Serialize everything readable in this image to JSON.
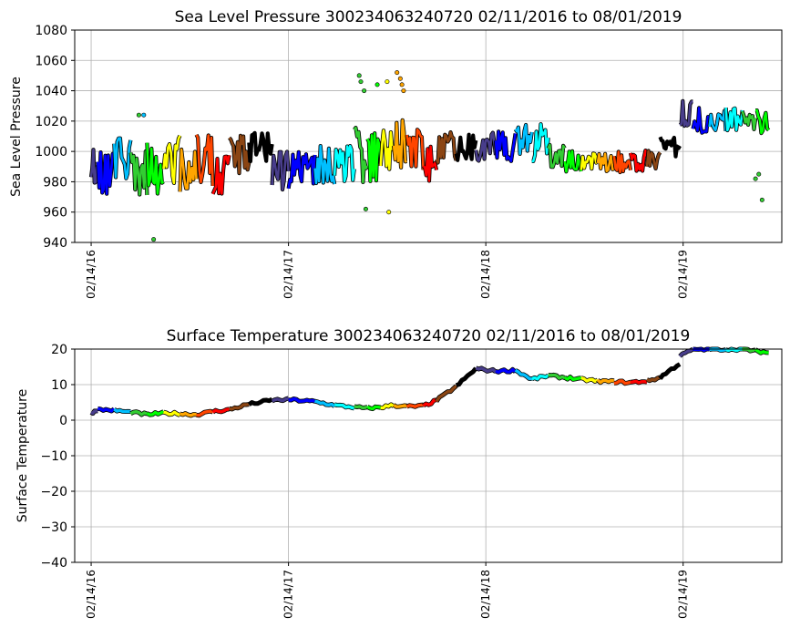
{
  "chart_data": [
    {
      "type": "scatter",
      "title": "Sea Level Pressure 300234063240720  02/11/2016 to 08/01/2019",
      "xlabel": "",
      "ylabel": "Sea Level Pressure",
      "ylim": [
        940,
        1080
      ],
      "yticks": [
        "940",
        "960",
        "980",
        "1000",
        "1020",
        "1040",
        "1060",
        "1080"
      ],
      "xlim_months": [
        -1.0,
        42.0
      ],
      "xticks": [
        {
          "label": "02/14/16",
          "month": 0
        },
        {
          "label": "02/14/17",
          "month": 12
        },
        {
          "label": "02/14/18",
          "month": 24
        },
        {
          "label": "02/14/19",
          "month": 36
        }
      ],
      "grid": true,
      "series": [
        {
          "month_start": 0,
          "month_end": 0.4,
          "color": "#483D8B",
          "center": 990,
          "amp": 14
        },
        {
          "month_start": 0.4,
          "month_end": 1.4,
          "color": "#0000FF",
          "center": 985,
          "amp": 15
        },
        {
          "month_start": 1.4,
          "month_end": 2.4,
          "color": "#00BFFF",
          "center": 995,
          "amp": 16
        },
        {
          "month_start": 2.4,
          "month_end": 3.4,
          "color": "#32CD32",
          "center": 985,
          "amp": 20
        },
        {
          "month_start": 3.4,
          "month_end": 4.4,
          "color": "#00FF00",
          "center": 990,
          "amp": 20
        },
        {
          "month_start": 4.4,
          "month_end": 5.4,
          "color": "#FFFF00",
          "center": 995,
          "amp": 18
        },
        {
          "month_start": 5.4,
          "month_end": 6.4,
          "color": "#FFA500",
          "center": 985,
          "amp": 18
        },
        {
          "month_start": 6.4,
          "month_end": 7.4,
          "color": "#FF4500",
          "center": 995,
          "amp": 20
        },
        {
          "month_start": 7.4,
          "month_end": 8.4,
          "color": "#FF0000",
          "center": 985,
          "amp": 14
        },
        {
          "month_start": 8.4,
          "month_end": 9.6,
          "color": "#8B4513",
          "center": 998,
          "amp": 14
        },
        {
          "month_start": 9.6,
          "month_end": 11.0,
          "color": "#000000",
          "center": 1002,
          "amp": 14
        },
        {
          "month_start": 11.0,
          "month_end": 12.0,
          "color": "#483D8B",
          "center": 990,
          "amp": 16
        },
        {
          "month_start": 12.0,
          "month_end": 13.6,
          "color": "#0000FF",
          "center": 988,
          "amp": 14
        },
        {
          "month_start": 13.6,
          "month_end": 14.8,
          "color": "#00BFFF",
          "center": 992,
          "amp": 16
        },
        {
          "month_start": 14.8,
          "month_end": 16.0,
          "color": "#00FFFF",
          "center": 990,
          "amp": 18
        },
        {
          "month_start": 16.0,
          "month_end": 16.8,
          "color": "#32CD32",
          "center": 995,
          "amp": 25
        },
        {
          "month_start": 16.8,
          "month_end": 17.6,
          "color": "#00FF00",
          "center": 995,
          "amp": 22
        },
        {
          "month_start": 17.6,
          "month_end": 18.4,
          "color": "#FFFF00",
          "center": 1000,
          "amp": 20
        },
        {
          "month_start": 18.4,
          "month_end": 19.2,
          "color": "#FFA500",
          "center": 1005,
          "amp": 18
        },
        {
          "month_start": 19.2,
          "month_end": 20.2,
          "color": "#FF4500",
          "center": 1000,
          "amp": 15
        },
        {
          "month_start": 20.2,
          "month_end": 21.0,
          "color": "#FF0000",
          "center": 995,
          "amp": 15
        },
        {
          "month_start": 21.0,
          "month_end": 22.2,
          "color": "#8B4513",
          "center": 1002,
          "amp": 12
        },
        {
          "month_start": 22.2,
          "month_end": 23.4,
          "color": "#000000",
          "center": 1002,
          "amp": 12
        },
        {
          "month_start": 23.4,
          "month_end": 24.6,
          "color": "#483D8B",
          "center": 1003,
          "amp": 10
        },
        {
          "month_start": 24.6,
          "month_end": 25.8,
          "color": "#0000FF",
          "center": 1005,
          "amp": 12
        },
        {
          "month_start": 25.8,
          "month_end": 26.8,
          "color": "#00BFFF",
          "center": 1008,
          "amp": 12
        },
        {
          "month_start": 26.8,
          "month_end": 27.8,
          "color": "#00FFFF",
          "center": 1005,
          "amp": 14
        },
        {
          "month_start": 27.8,
          "month_end": 28.8,
          "color": "#32CD32",
          "center": 998,
          "amp": 10
        },
        {
          "month_start": 28.8,
          "month_end": 29.8,
          "color": "#00FF00",
          "center": 993,
          "amp": 8
        },
        {
          "month_start": 29.8,
          "month_end": 30.8,
          "color": "#FFFF00",
          "center": 993,
          "amp": 7
        },
        {
          "month_start": 30.8,
          "month_end": 31.8,
          "color": "#FFA500",
          "center": 993,
          "amp": 8
        },
        {
          "month_start": 31.8,
          "month_end": 32.8,
          "color": "#FF4500",
          "center": 992,
          "amp": 8
        },
        {
          "month_start": 32.8,
          "month_end": 33.8,
          "color": "#FF0000",
          "center": 993,
          "amp": 8
        },
        {
          "month_start": 33.8,
          "month_end": 34.6,
          "color": "#8B4513",
          "center": 995,
          "amp": 8
        },
        {
          "month_start": 34.6,
          "month_end": 35.8,
          "color": "#000000",
          "center": 1002,
          "amp": 8
        },
        {
          "month_start": 35.8,
          "month_end": 36.6,
          "color": "#483D8B",
          "center": 1025,
          "amp": 10
        },
        {
          "month_start": 36.6,
          "month_end": 37.6,
          "color": "#0000FF",
          "center": 1022,
          "amp": 10
        },
        {
          "month_start": 37.6,
          "month_end": 38.6,
          "color": "#00BFFF",
          "center": 1020,
          "amp": 10
        },
        {
          "month_start": 38.6,
          "month_end": 39.6,
          "color": "#00FFFF",
          "center": 1022,
          "amp": 10
        },
        {
          "month_start": 39.6,
          "month_end": 40.4,
          "color": "#32CD32",
          "center": 1022,
          "amp": 10
        },
        {
          "month_start": 40.4,
          "month_end": 41.2,
          "color": "#00FF00",
          "center": 1020,
          "amp": 10
        }
      ],
      "outliers": [
        {
          "month": 16.3,
          "value": 1050,
          "color": "#32CD32"
        },
        {
          "month": 16.4,
          "value": 1046,
          "color": "#32CD32"
        },
        {
          "month": 16.6,
          "value": 1040,
          "color": "#32CD32"
        },
        {
          "month": 17.4,
          "value": 1044,
          "color": "#00FF00"
        },
        {
          "month": 18.0,
          "value": 1046,
          "color": "#FFFF00"
        },
        {
          "month": 18.6,
          "value": 1052,
          "color": "#FFA500"
        },
        {
          "month": 18.8,
          "value": 1048,
          "color": "#FFA500"
        },
        {
          "month": 18.9,
          "value": 1044,
          "color": "#FFA500"
        },
        {
          "month": 19.0,
          "value": 1040,
          "color": "#FFA500"
        },
        {
          "month": 3.2,
          "value": 1024,
          "color": "#00BFFF"
        },
        {
          "month": 2.9,
          "value": 1024,
          "color": "#32CD32"
        },
        {
          "month": 3.8,
          "value": 942,
          "color": "#32CD32"
        },
        {
          "month": 16.7,
          "value": 962,
          "color": "#32CD32"
        },
        {
          "month": 18.1,
          "value": 960,
          "color": "#FFFF00"
        },
        {
          "month": 40.6,
          "value": 985,
          "color": "#32CD32"
        },
        {
          "month": 40.8,
          "value": 968,
          "color": "#32CD32"
        },
        {
          "month": 40.4,
          "value": 982,
          "color": "#32CD32"
        }
      ]
    },
    {
      "type": "scatter",
      "title": "Surface Temperature 300234063240720  02/11/2016 to 08/01/2019",
      "xlabel": "",
      "ylabel": "Surface Temperature",
      "ylim": [
        -40,
        20
      ],
      "yticks": [
        "−40",
        "−30",
        "−20",
        "−10",
        "0",
        "10",
        "20"
      ],
      "xlim_months": [
        -1.0,
        42.0
      ],
      "xticks": [
        {
          "label": "02/14/16",
          "month": 0
        },
        {
          "label": "02/14/17",
          "month": 12
        },
        {
          "label": "02/14/18",
          "month": 24
        },
        {
          "label": "02/14/19",
          "month": 36
        }
      ],
      "grid": true,
      "series": [
        {
          "month_start": 0,
          "month_end": 0.4,
          "color": "#483D8B",
          "v_start": 2,
          "v_end": 3
        },
        {
          "month_start": 0.4,
          "month_end": 1.4,
          "color": "#0000FF",
          "v_start": 3,
          "v_end": 2.8
        },
        {
          "month_start": 1.4,
          "month_end": 2.4,
          "color": "#00BFFF",
          "v_start": 2.8,
          "v_end": 2.2
        },
        {
          "month_start": 2.4,
          "month_end": 3.4,
          "color": "#32CD32",
          "v_start": 2.2,
          "v_end": 1.6
        },
        {
          "month_start": 3.4,
          "month_end": 4.4,
          "color": "#00FF00",
          "v_start": 1.6,
          "v_end": 2.0
        },
        {
          "month_start": 4.4,
          "month_end": 5.4,
          "color": "#FFFF00",
          "v_start": 2.0,
          "v_end": 1.8
        },
        {
          "month_start": 5.4,
          "month_end": 6.4,
          "color": "#FFA500",
          "v_start": 1.8,
          "v_end": 1.6
        },
        {
          "month_start": 6.4,
          "month_end": 7.4,
          "color": "#FF4500",
          "v_start": 1.6,
          "v_end": 2.4
        },
        {
          "month_start": 7.4,
          "month_end": 8.4,
          "color": "#FF0000",
          "v_start": 2.4,
          "v_end": 3.0
        },
        {
          "month_start": 8.4,
          "month_end": 9.6,
          "color": "#8B4513",
          "v_start": 3.0,
          "v_end": 4.5
        },
        {
          "month_start": 9.6,
          "month_end": 11.0,
          "color": "#000000",
          "v_start": 4.5,
          "v_end": 5.6
        },
        {
          "month_start": 11.0,
          "month_end": 12.0,
          "color": "#483D8B",
          "v_start": 5.6,
          "v_end": 5.8
        },
        {
          "month_start": 12.0,
          "month_end": 13.6,
          "color": "#0000FF",
          "v_start": 5.8,
          "v_end": 5.2
        },
        {
          "month_start": 13.6,
          "month_end": 14.8,
          "color": "#00BFFF",
          "v_start": 5.2,
          "v_end": 4.2
        },
        {
          "month_start": 14.8,
          "month_end": 16.0,
          "color": "#00FFFF",
          "v_start": 4.2,
          "v_end": 3.6
        },
        {
          "month_start": 16.0,
          "month_end": 16.8,
          "color": "#32CD32",
          "v_start": 3.6,
          "v_end": 3.4
        },
        {
          "month_start": 16.8,
          "month_end": 17.6,
          "color": "#00FF00",
          "v_start": 3.4,
          "v_end": 3.6
        },
        {
          "month_start": 17.6,
          "month_end": 18.4,
          "color": "#FFFF00",
          "v_start": 3.6,
          "v_end": 4.2
        },
        {
          "month_start": 18.4,
          "month_end": 19.2,
          "color": "#FFA500",
          "v_start": 4.2,
          "v_end": 3.8
        },
        {
          "month_start": 19.2,
          "month_end": 20.2,
          "color": "#FF4500",
          "v_start": 3.8,
          "v_end": 4.0
        },
        {
          "month_start": 20.2,
          "month_end": 21.0,
          "color": "#FF0000",
          "v_start": 4.0,
          "v_end": 5.5
        },
        {
          "month_start": 21.0,
          "month_end": 22.2,
          "color": "#8B4513",
          "v_start": 5.5,
          "v_end": 9.5
        },
        {
          "month_start": 22.2,
          "month_end": 23.4,
          "color": "#000000",
          "v_start": 9.5,
          "v_end": 14.5
        },
        {
          "month_start": 23.4,
          "month_end": 24.6,
          "color": "#483D8B",
          "v_start": 14.5,
          "v_end": 13.8
        },
        {
          "month_start": 24.6,
          "month_end": 25.8,
          "color": "#0000FF",
          "v_start": 13.8,
          "v_end": 14.0
        },
        {
          "month_start": 25.8,
          "month_end": 26.8,
          "color": "#00BFFF",
          "v_start": 14.0,
          "v_end": 11.5
        },
        {
          "month_start": 26.8,
          "month_end": 27.8,
          "color": "#00FFFF",
          "v_start": 11.5,
          "v_end": 12.5
        },
        {
          "month_start": 27.8,
          "month_end": 28.8,
          "color": "#32CD32",
          "v_start": 12.5,
          "v_end": 12.0
        },
        {
          "month_start": 28.8,
          "month_end": 29.8,
          "color": "#00FF00",
          "v_start": 12.0,
          "v_end": 11.5
        },
        {
          "month_start": 29.8,
          "month_end": 30.8,
          "color": "#FFFF00",
          "v_start": 11.5,
          "v_end": 11.0
        },
        {
          "month_start": 30.8,
          "month_end": 31.8,
          "color": "#FFA500",
          "v_start": 11.0,
          "v_end": 10.8
        },
        {
          "month_start": 31.8,
          "month_end": 32.8,
          "color": "#FF4500",
          "v_start": 10.8,
          "v_end": 10.6
        },
        {
          "month_start": 32.8,
          "month_end": 33.8,
          "color": "#FF0000",
          "v_start": 10.6,
          "v_end": 11.0
        },
        {
          "month_start": 33.8,
          "month_end": 34.6,
          "color": "#8B4513",
          "v_start": 11.0,
          "v_end": 12.0
        },
        {
          "month_start": 34.6,
          "month_end": 35.8,
          "color": "#000000",
          "v_start": 12.0,
          "v_end": 16.0
        },
        {
          "month_start": 35.8,
          "month_end": 36.6,
          "color": "#483D8B",
          "v_start": 18.0,
          "v_end": 20.0
        },
        {
          "month_start": 36.6,
          "month_end": 37.6,
          "color": "#0000FF",
          "v_start": 20.0,
          "v_end": 20.0
        },
        {
          "month_start": 37.6,
          "month_end": 38.6,
          "color": "#00BFFF",
          "v_start": 20.0,
          "v_end": 20.0
        },
        {
          "month_start": 38.6,
          "month_end": 39.6,
          "color": "#00FFFF",
          "v_start": 20.0,
          "v_end": 20.0
        },
        {
          "month_start": 39.6,
          "month_end": 40.4,
          "color": "#32CD32",
          "v_start": 20.0,
          "v_end": 19.5
        },
        {
          "month_start": 40.4,
          "month_end": 41.2,
          "color": "#00FF00",
          "v_start": 19.5,
          "v_end": 19.0
        }
      ]
    }
  ]
}
